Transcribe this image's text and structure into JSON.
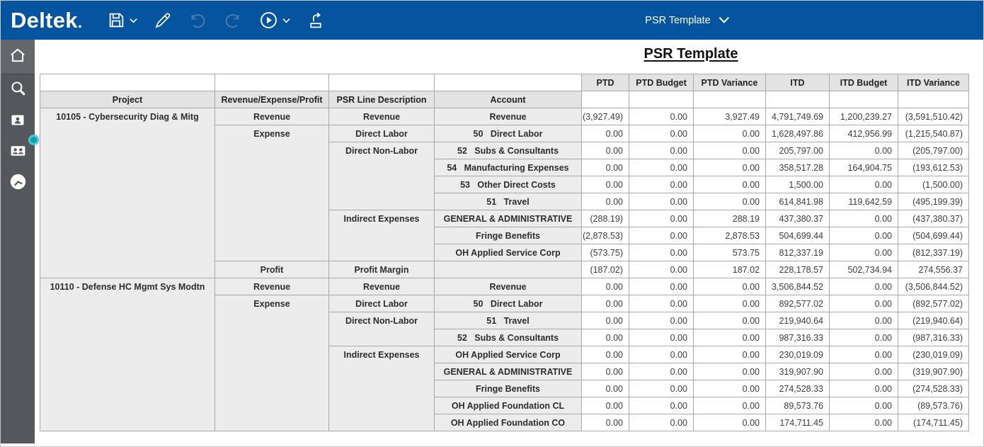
{
  "app": {
    "logo_text": "Deltek",
    "view_selector_label": "PSR Template"
  },
  "toolbar": {
    "items": [
      {
        "name": "save",
        "icon": "floppy-disk-icon",
        "has_dropdown": true,
        "enabled": true
      },
      {
        "name": "edit",
        "icon": "pencil-icon",
        "has_dropdown": false,
        "enabled": true
      },
      {
        "name": "undo",
        "icon": "undo-arrow-icon",
        "has_dropdown": false,
        "enabled": false
      },
      {
        "name": "redo",
        "icon": "redo-arrow-icon",
        "has_dropdown": false,
        "enabled": false
      },
      {
        "name": "run",
        "icon": "play-circle-icon",
        "has_dropdown": true,
        "enabled": true
      },
      {
        "name": "export",
        "icon": "export-tray-icon",
        "has_dropdown": false,
        "enabled": true
      }
    ]
  },
  "sidebar": {
    "items": [
      {
        "name": "home",
        "icon": "home-icon"
      },
      {
        "name": "search",
        "icon": "search-icon"
      },
      {
        "name": "employee-directory",
        "icon": "badge-person-icon"
      },
      {
        "name": "contacts",
        "icon": "two-people-icon"
      },
      {
        "name": "history",
        "icon": "clock-icon"
      }
    ]
  },
  "report": {
    "title": "PSR Template"
  },
  "colors": {
    "topbar_blue": "#05549f",
    "disabled_icon_blue": "#4678ad",
    "sidebar_gray": "#54575b",
    "teal_accent": "#49c8d6",
    "header_gray": "#e3e3e3",
    "row_gray": "#ececec",
    "border_gray": "#a9a9a9"
  },
  "table": {
    "left_headers": [
      "Project",
      "Revenue/Expense/Profit",
      "PSR Line Description",
      "Account"
    ],
    "num_headers": [
      "PTD",
      "PTD Budget",
      "PTD Variance",
      "ITD",
      "ITD Budget",
      "ITD Variance"
    ],
    "rows": [
      {
        "project": {
          "text": "10105 - Cybersecurity Diag & Mitg",
          "span": 10
        },
        "rep": {
          "text": "Revenue",
          "span": 1
        },
        "psr": {
          "text": "Revenue",
          "span": 1
        },
        "account": "Revenue",
        "values": [
          "(3,927.49)",
          "0.00",
          "3,927.49",
          "4,791,749.69",
          "1,200,239.27",
          "(3,591,510.42)"
        ]
      },
      {
        "rep": {
          "text": "Expense",
          "span": 8
        },
        "psr": {
          "text": "Direct Labor",
          "span": 1
        },
        "account": "50   Direct Labor",
        "values": [
          "0.00",
          "0.00",
          "0.00",
          "1,628,497.86",
          "412,956.99",
          "(1,215,540.87)"
        ]
      },
      {
        "psr": {
          "text": "Direct Non-Labor",
          "span": 4
        },
        "account": "52   Subs & Consultants",
        "values": [
          "0.00",
          "0.00",
          "0.00",
          "205,797.00",
          "0.00",
          "(205,797.00)"
        ]
      },
      {
        "account": "54   Manufacturing Expenses",
        "values": [
          "0.00",
          "0.00",
          "0.00",
          "358,517.28",
          "164,904.75",
          "(193,612.53)"
        ]
      },
      {
        "account": "53   Other Direct Costs",
        "values": [
          "0.00",
          "0.00",
          "0.00",
          "1,500.00",
          "0.00",
          "(1,500.00)"
        ]
      },
      {
        "account": "51   Travel",
        "values": [
          "0.00",
          "0.00",
          "0.00",
          "614,841.98",
          "119,642.59",
          "(495,199.39)"
        ]
      },
      {
        "psr": {
          "text": "Indirect Expenses",
          "span": 3
        },
        "account": "GENERAL & ADMINISTRATIVE",
        "values": [
          "(288.19)",
          "0.00",
          "288.19",
          "437,380.37",
          "0.00",
          "(437,380.37)"
        ]
      },
      {
        "account": "Fringe Benefits",
        "values": [
          "(2,878.53)",
          "0.00",
          "2,878.53",
          "504,699.44",
          "0.00",
          "(504,699.44)"
        ]
      },
      {
        "account": "OH Applied Service Corp",
        "values": [
          "(573.75)",
          "0.00",
          "573.75",
          "812,337.19",
          "0.00",
          "(812,337.19)"
        ]
      },
      {
        "rep": {
          "text": "Profit",
          "span": 1
        },
        "psr": {
          "text": "Profit Margin",
          "span": 1
        },
        "account": "",
        "values": [
          "(187.02)",
          "0.00",
          "187.02",
          "228,178.57",
          "502,734.94",
          "274,556.37"
        ]
      },
      {
        "project": {
          "text": "10110 - Defense HC Mgmt Sys Modtn",
          "span": 9
        },
        "rep": {
          "text": "Revenue",
          "span": 1
        },
        "psr": {
          "text": "Revenue",
          "span": 1
        },
        "account": "Revenue",
        "values": [
          "0.00",
          "0.00",
          "0.00",
          "3,506,844.52",
          "0.00",
          "(3,506,844.52)"
        ]
      },
      {
        "rep": {
          "text": "Expense",
          "span": 8
        },
        "psr": {
          "text": "Direct Labor",
          "span": 1
        },
        "account": "50   Direct Labor",
        "values": [
          "0.00",
          "0.00",
          "0.00",
          "892,577.02",
          "0.00",
          "(892,577.02)"
        ]
      },
      {
        "psr": {
          "text": "Direct Non-Labor",
          "span": 2
        },
        "account": "51   Travel",
        "values": [
          "0.00",
          "0.00",
          "0.00",
          "219,940.64",
          "0.00",
          "(219,940.64)"
        ]
      },
      {
        "account": "52   Subs & Consultants",
        "values": [
          "0.00",
          "0.00",
          "0.00",
          "987,316.33",
          "0.00",
          "(987,316.33)"
        ]
      },
      {
        "psr": {
          "text": "Indirect Expenses",
          "span": 5
        },
        "account": "OH Applied Service Corp",
        "values": [
          "0.00",
          "0.00",
          "0.00",
          "230,019.09",
          "0.00",
          "(230,019.09)"
        ]
      },
      {
        "account": "GENERAL & ADMINISTRATIVE",
        "values": [
          "0.00",
          "0.00",
          "0.00",
          "319,907.90",
          "0.00",
          "(319,907.90)"
        ]
      },
      {
        "account": "Fringe Benefits",
        "values": [
          "0.00",
          "0.00",
          "0.00",
          "274,528.33",
          "0.00",
          "(274,528.33)"
        ]
      },
      {
        "account": "OH Applied Foundation CL",
        "values": [
          "0.00",
          "0.00",
          "0.00",
          "89,573.76",
          "0.00",
          "(89,573.76)"
        ]
      },
      {
        "account": "OH Applied Foundation CO",
        "values": [
          "0.00",
          "0.00",
          "0.00",
          "174,711.45",
          "0.00",
          "(174,711.45)"
        ]
      }
    ]
  }
}
